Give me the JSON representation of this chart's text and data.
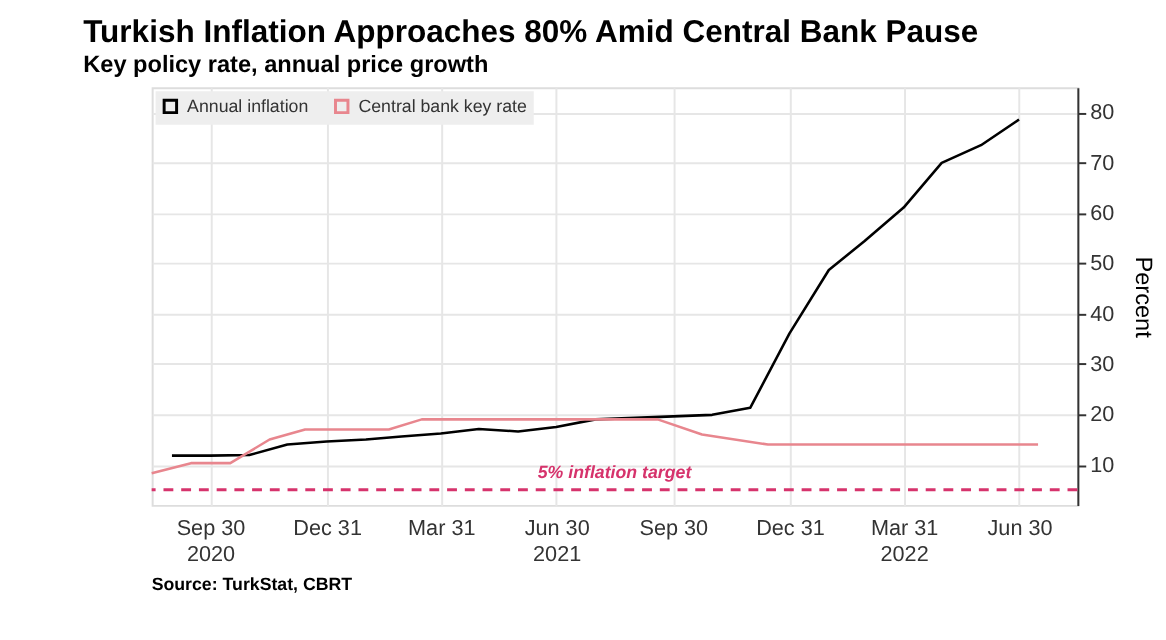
{
  "chart_data": {
    "type": "line",
    "title": "Turkish Inflation Approaches 80% Amid Central Bank Pause",
    "subtitle": "Key policy rate, annual price growth",
    "ylabel": "Percent",
    "x": [
      "2020-08-31",
      "2020-09-30",
      "2020-10-31",
      "2020-11-30",
      "2020-12-31",
      "2021-01-31",
      "2021-02-28",
      "2021-03-31",
      "2021-04-30",
      "2021-05-31",
      "2021-06-30",
      "2021-07-31",
      "2021-08-31",
      "2021-09-30",
      "2021-10-31",
      "2021-11-30",
      "2021-12-31",
      "2022-01-31",
      "2022-02-28",
      "2022-03-31",
      "2022-04-30",
      "2022-05-31",
      "2022-06-30"
    ],
    "series": [
      {
        "name": "Annual inflation",
        "color": "#000000",
        "values": [
          11.8,
          11.8,
          11.9,
          14.0,
          14.6,
          15.0,
          15.6,
          16.2,
          17.1,
          16.6,
          17.5,
          19.0,
          19.3,
          19.6,
          19.9,
          21.3,
          36.1,
          48.7,
          54.4,
          61.1,
          70.0,
          73.5,
          78.6
        ]
      },
      {
        "name": "Central bank key rate",
        "color": "#e8868e",
        "x": [
          "2020-08-15",
          "2020-09-15",
          "2020-10-16",
          "2020-11-16",
          "2020-12-14",
          "2021-02-18",
          "2021-03-16",
          "2021-09-18",
          "2021-10-23",
          "2021-12-14",
          "2022-07-15"
        ],
        "values": [
          8.3,
          10.3,
          10.3,
          15,
          17,
          17,
          19,
          19,
          16,
          14,
          14
        ]
      }
    ],
    "xlim": [
      "2020-08-15",
      "2022-08-15"
    ],
    "xticks": [
      {
        "value": "2020-09-30",
        "label": "Sep 30\n2020"
      },
      {
        "value": "2020-12-31",
        "label": "Dec 31"
      },
      {
        "value": "2021-03-31",
        "label": "Mar 31"
      },
      {
        "value": "2021-06-30",
        "label": "Jun 30\n2021"
      },
      {
        "value": "2021-09-30",
        "label": "Sep 30"
      },
      {
        "value": "2021-12-31",
        "label": "Dec 31"
      },
      {
        "value": "2022-03-31",
        "label": "Mar 31\n2022"
      },
      {
        "value": "2022-06-30",
        "label": "Jun 30"
      }
    ],
    "ylim": [
      2,
      85
    ],
    "yticks": [
      10,
      20,
      30,
      40,
      50,
      60,
      70,
      80
    ],
    "ref_lines": [
      {
        "axis": "y",
        "value": 5,
        "label": "5% inflation target",
        "color": "#d6336c",
        "line_style": "dashed"
      }
    ],
    "annotations": [
      "Source: TurkStat, CBRT"
    ],
    "grid": true,
    "legend": "top left",
    "marker": "none",
    "line_style": "solid"
  }
}
